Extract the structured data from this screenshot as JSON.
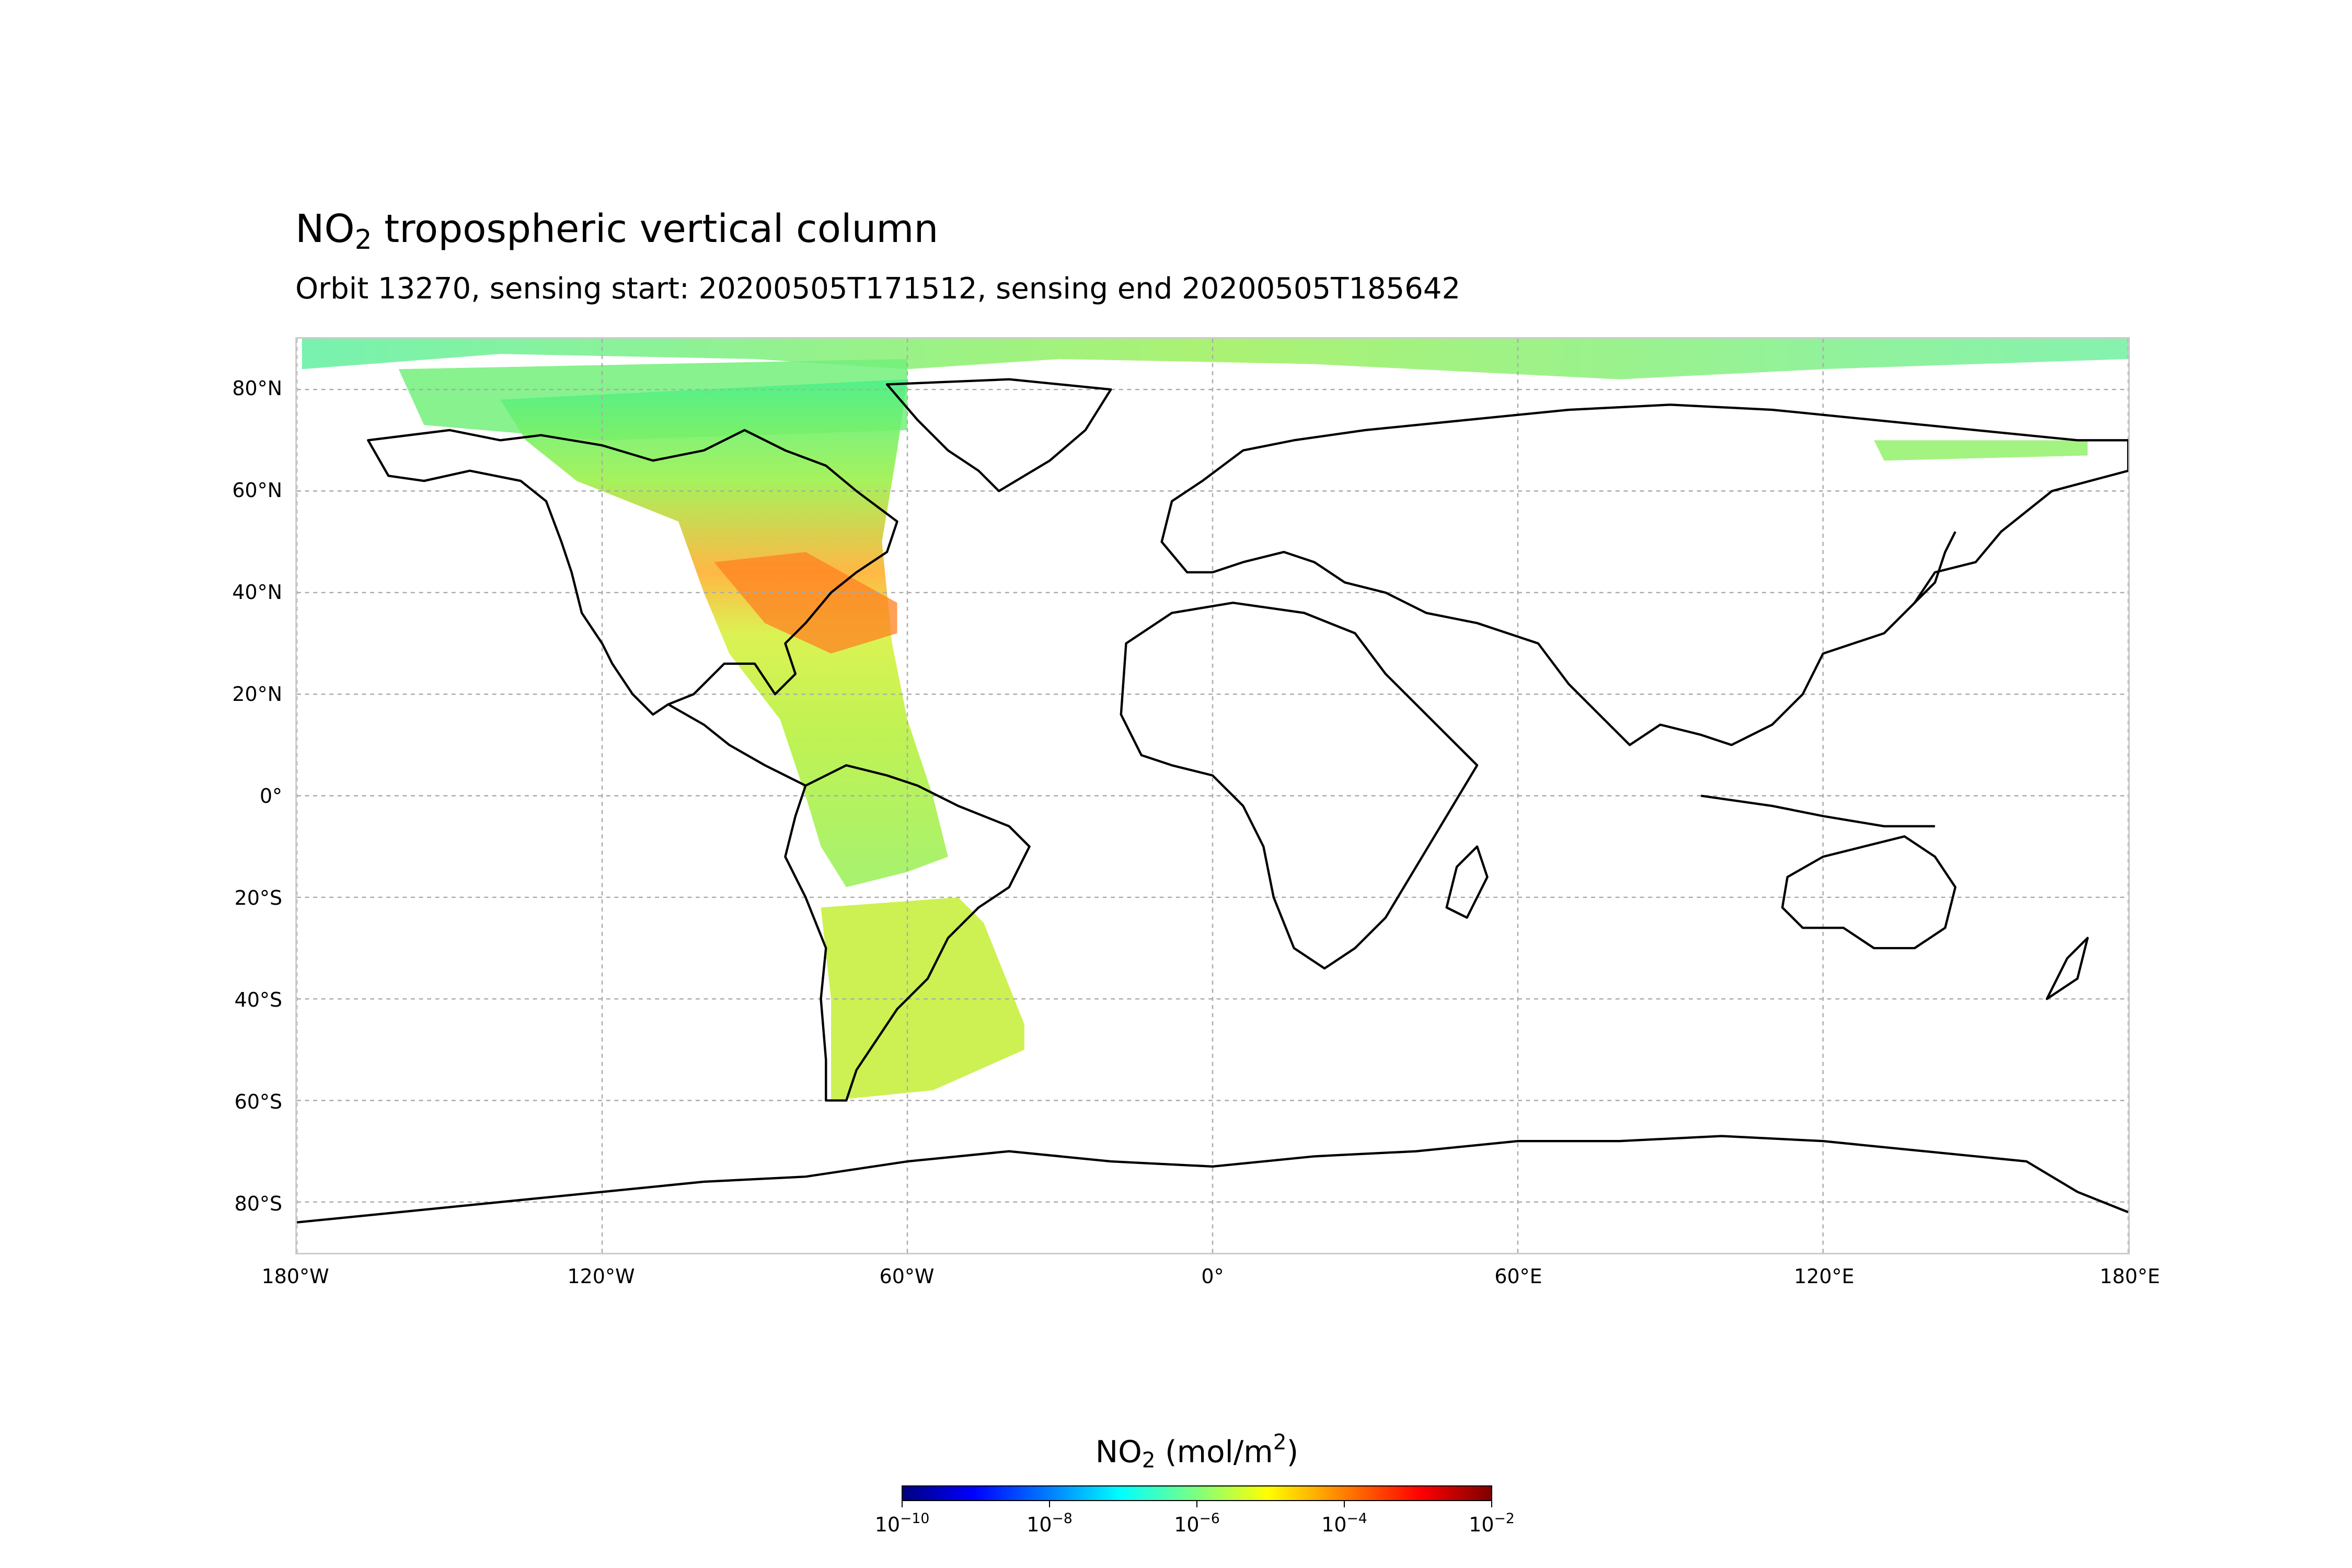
{
  "title": {
    "main": "NO",
    "sub": "2",
    "rest": " tropospheric vertical column"
  },
  "subtitle": "Orbit 13270, sensing start: 20200505T171512, sensing end 20200505T185642",
  "map": {
    "projection": "plate-carree",
    "lon_range": [
      -180,
      180
    ],
    "lat_range": [
      -90,
      90
    ],
    "gridlines": true,
    "lat_ticks": [
      {
        "value": 80,
        "label": "80°N"
      },
      {
        "value": 60,
        "label": "60°N"
      },
      {
        "value": 40,
        "label": "40°N"
      },
      {
        "value": 20,
        "label": "20°N"
      },
      {
        "value": 0,
        "label": "0°"
      },
      {
        "value": -20,
        "label": "20°S"
      },
      {
        "value": -40,
        "label": "40°S"
      },
      {
        "value": -60,
        "label": "60°S"
      },
      {
        "value": -80,
        "label": "80°S"
      }
    ],
    "lon_ticks": [
      {
        "value": -180,
        "label": "180°W"
      },
      {
        "value": -120,
        "label": "120°W"
      },
      {
        "value": -60,
        "label": "60°W"
      },
      {
        "value": 0,
        "label": "0°"
      },
      {
        "value": 60,
        "label": "60°E"
      },
      {
        "value": 120,
        "label": "120°E"
      },
      {
        "value": 180,
        "label": "180°E"
      }
    ],
    "swath_color_range": [
      "#6cf56a",
      "#ff7a1a"
    ],
    "coastline_color": "#000000",
    "border_color": "#808080",
    "masked_fill": "#7f7f7f"
  },
  "colorbar": {
    "label_main": "NO",
    "label_sub": "2",
    "label_unit_pre": " (mol/m",
    "label_unit_sup": "2",
    "label_unit_post": ")",
    "scale": "log",
    "colormap": "jet",
    "range": [
      1e-10,
      0.01
    ],
    "ticks": [
      {
        "value": 1e-10,
        "base": "10",
        "exp": "−10"
      },
      {
        "value": 1e-08,
        "base": "10",
        "exp": "−8"
      },
      {
        "value": 1e-06,
        "base": "10",
        "exp": "−6"
      },
      {
        "value": 0.0001,
        "base": "10",
        "exp": "−4"
      },
      {
        "value": 0.01,
        "base": "10",
        "exp": "−2"
      }
    ]
  }
}
